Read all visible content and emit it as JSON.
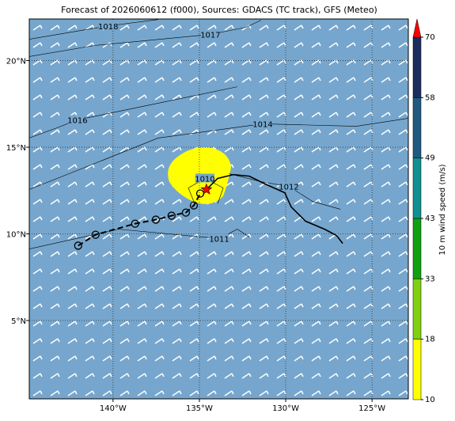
{
  "chart_data": {
    "type": "map",
    "title": "Forecast of 2026060612 (f000), Sources: GDACS (TC track), GFS (Meteo)",
    "xlim": [
      -144.85,
      -122.9
    ],
    "ylim": [
      0.48,
      22.4
    ],
    "xticks": [
      {
        "value": -140,
        "label": "140°W"
      },
      {
        "value": -135,
        "label": "135°W"
      },
      {
        "value": -130,
        "label": "130°W"
      },
      {
        "value": -125,
        "label": "125°W"
      }
    ],
    "yticks": [
      {
        "value": 5,
        "label": "5°N"
      },
      {
        "value": 10,
        "label": "10°N"
      },
      {
        "value": 15,
        "label": "15°N"
      },
      {
        "value": 20,
        "label": "20°N"
      }
    ],
    "grid": true,
    "background": "#76a6cd",
    "track": {
      "past": {
        "lon": [
          -142.02,
          -141.01,
          -138.72,
          -137.52,
          -136.61,
          -135.78,
          -135.32,
          -134.95
        ],
        "lat": [
          9.32,
          9.95,
          10.59,
          10.82,
          11.05,
          11.23,
          11.64,
          12.33
        ]
      },
      "current": {
        "lon": -134.59,
        "lat": 12.56,
        "color": "#ff0000"
      },
      "forecast": {
        "lon": [
          -134.59,
          -133.94,
          -133.03,
          -132.11,
          -131.19,
          -130.05,
          -129.68,
          -128.85,
          -127.75,
          -127.06,
          -126.7
        ],
        "lat": [
          12.56,
          13.2,
          13.42,
          13.33,
          12.88,
          12.37,
          11.55,
          10.73,
          10.27,
          9.91,
          9.45
        ]
      }
    },
    "isobars": [
      {
        "label": "1018",
        "lon": [
          -144.86,
          -140.28,
          -137.39
        ],
        "lat": [
          21.23,
          22.0,
          22.37
        ]
      },
      {
        "label": "1017",
        "lon": [
          -144.86,
          -141.06,
          -134.36,
          -132.3,
          -131.42
        ],
        "lat": [
          20.23,
          20.87,
          21.51,
          21.92,
          22.33
        ]
      },
      {
        "label": "1016",
        "lon": [
          -144.86,
          -143.35,
          -142.06,
          -138.3,
          -132.8
        ],
        "lat": [
          15.53,
          16.08,
          16.58,
          17.35,
          18.49
        ]
      },
      {
        "label": "1014",
        "lon": [
          -144.86,
          -141.97,
          -137.39,
          -131.33,
          -125.92,
          -122.9
        ],
        "lat": [
          12.56,
          13.7,
          15.53,
          16.35,
          16.21,
          16.67
        ]
      },
      {
        "label": "1012",
        "lon": [
          -133.26,
          -131.42,
          -129.82,
          -128.44,
          -126.83
        ],
        "lat": [
          13.47,
          13.01,
          12.74,
          11.87,
          11.42
        ]
      },
      {
        "label": "1011",
        "lon": [
          -144.86,
          -139.68,
          -133.85,
          -132.8,
          -132.11
        ],
        "lat": [
          9.13,
          10.27,
          9.73,
          10.27,
          9.82
        ]
      },
      {
        "label": "1010",
        "lon": [
          -135.32,
          -135.64,
          -134.68,
          -133.62,
          -133.94
        ],
        "lat": [
          11.87,
          12.65,
          13.2,
          12.65,
          11.74
        ]
      }
    ],
    "colorbar": {
      "label": "10 m wind speed (m/s)",
      "ticks": [
        10,
        18,
        33,
        43,
        49,
        58,
        70
      ],
      "colors": [
        "#ffff00",
        "#80d010",
        "#10a010",
        "#109090",
        "#205a80",
        "#1c2c5c"
      ],
      "extend_color": "#ff0000"
    }
  }
}
